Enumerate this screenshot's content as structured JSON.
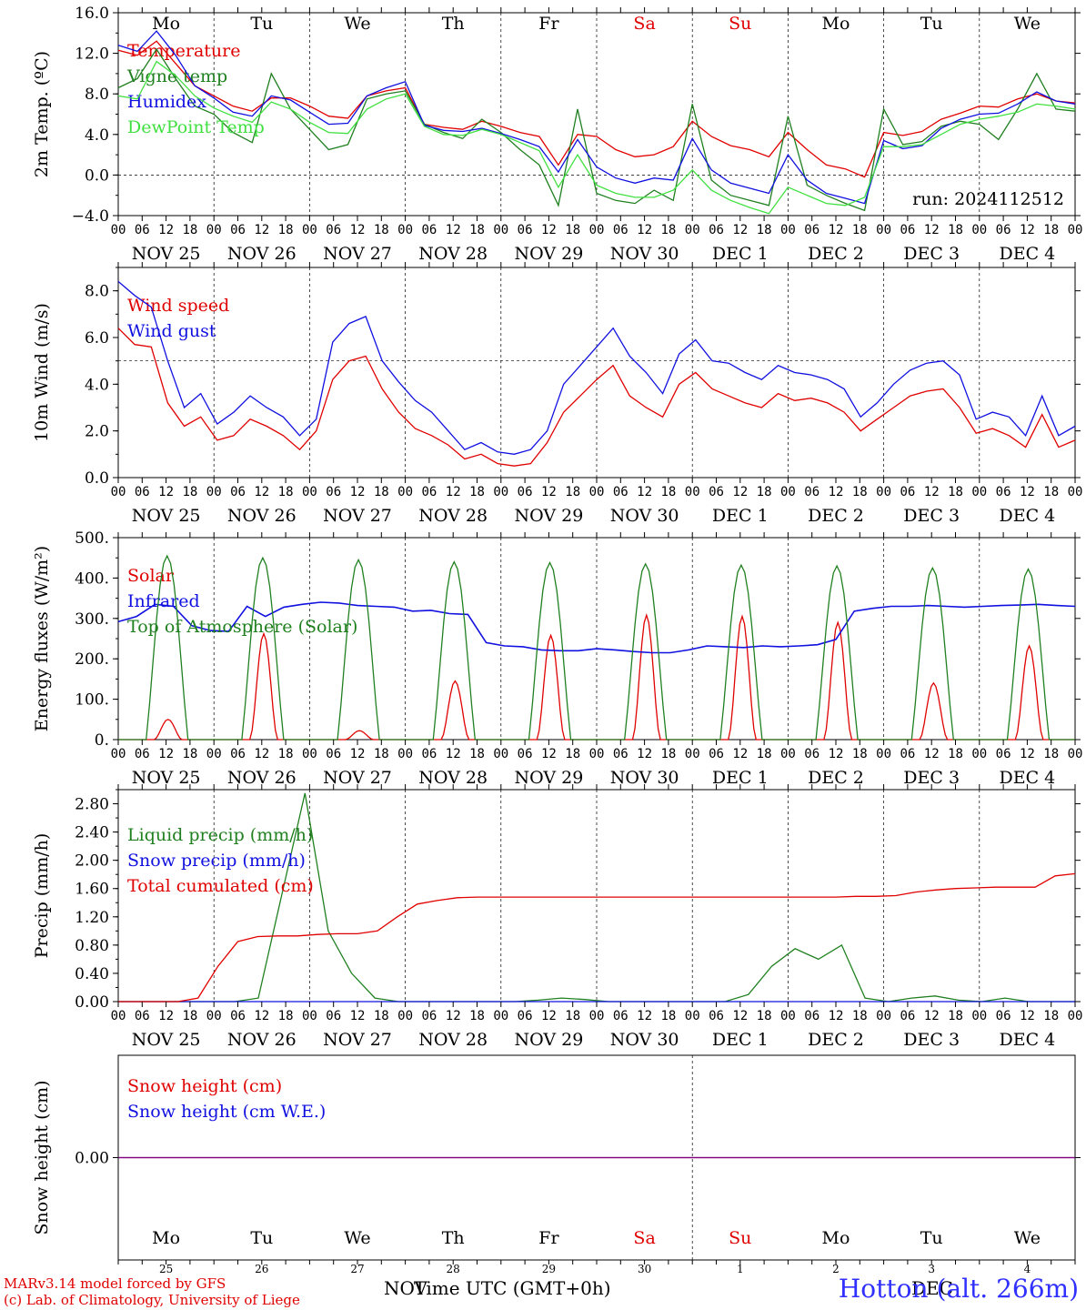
{
  "run_label": "run: 2024112512",
  "credits": [
    "MARv3.14 model forced by GFS",
    "(c) Lab. of Climatology, University of Liege"
  ],
  "station": "Hotton (alt. 266m)",
  "x_axis_title": "Time UTC (GMT+0h)",
  "month_labels": {
    "nov": "NOV",
    "dec": "DEC"
  },
  "hour_ticks": [
    "00",
    "06",
    "12",
    "18"
  ],
  "date_labels": [
    "NOV 25",
    "NOV 26",
    "NOV 27",
    "NOV 28",
    "NOV 29",
    "NOV 30",
    "DEC  1",
    "DEC  2",
    "DEC  3",
    "DEC  4"
  ],
  "weekday_labels": [
    {
      "text": "Mo",
      "color": "#000000"
    },
    {
      "text": "Tu",
      "color": "#000000"
    },
    {
      "text": "We",
      "color": "#000000"
    },
    {
      "text": "Th",
      "color": "#000000"
    },
    {
      "text": "Fr",
      "color": "#000000"
    },
    {
      "text": "Sa",
      "color": "#e00000"
    },
    {
      "text": "Su",
      "color": "#e00000"
    },
    {
      "text": "Mo",
      "color": "#000000"
    },
    {
      "text": "Tu",
      "color": "#000000"
    },
    {
      "text": "We",
      "color": "#000000"
    }
  ],
  "day_numbers": [
    "25",
    "26",
    "27",
    "28",
    "29",
    "30",
    "1",
    "2",
    "3",
    "4"
  ],
  "colors": {
    "red": "#e00000",
    "green": "#208020",
    "blue": "#1010e0",
    "lightgreen": "#40e040",
    "purple": "#800080"
  },
  "chart_data": [
    {
      "type": "line",
      "id": "temperature",
      "ylabel": "2m Temp. (ºC)",
      "ylim": [
        -4,
        16
      ],
      "yticks": [
        "16.0",
        "12.0",
        "8.0",
        "4.0",
        "0.0",
        "−4.0"
      ],
      "ytick_values": [
        16,
        12,
        8,
        4,
        0,
        -4
      ],
      "ref_line": 0,
      "x_hours_step": 6,
      "series": [
        {
          "name": "Temperature",
          "color": "#e00000",
          "values": [
            12.3,
            11.8,
            13.2,
            11.0,
            8.8,
            7.8,
            6.8,
            6.3,
            7.6,
            7.6,
            6.8,
            5.8,
            5.6,
            7.8,
            8.3,
            8.6,
            5.0,
            4.7,
            4.5,
            5.3,
            4.8,
            4.2,
            3.8,
            1.0,
            4.0,
            3.8,
            2.5,
            1.8,
            2.0,
            2.8,
            5.3,
            3.8,
            2.9,
            2.5,
            1.8,
            4.2,
            2.5,
            1.0,
            0.6,
            -0.2,
            4.2,
            3.9,
            4.3,
            5.5,
            6.1,
            6.8,
            6.7,
            7.5,
            8.0,
            7.3,
            7.1
          ]
        },
        {
          "name": "Vigne temp",
          "color": "#208020",
          "values": [
            8.6,
            9.5,
            12.4,
            9.5,
            6.8,
            6.0,
            4.2,
            3.2,
            10.0,
            6.5,
            4.5,
            2.5,
            3.0,
            7.5,
            8.0,
            8.3,
            5.0,
            4.2,
            3.6,
            5.5,
            4.2,
            2.5,
            1.0,
            -3.0,
            6.5,
            -1.8,
            -2.5,
            -2.8,
            -1.5,
            -2.5,
            7.0,
            -0.5,
            -2.0,
            -2.5,
            -3.0,
            5.8,
            -1.0,
            -2.0,
            -2.8,
            -3.5,
            6.5,
            3.0,
            3.3,
            4.8,
            5.3,
            5.0,
            3.5,
            6.5,
            10.0,
            6.5,
            6.3
          ]
        },
        {
          "name": "Humidex",
          "color": "#1010e0",
          "values": [
            12.8,
            12.2,
            14.2,
            11.8,
            8.8,
            7.6,
            6.2,
            5.8,
            7.8,
            7.4,
            6.2,
            5.0,
            5.1,
            7.8,
            8.6,
            9.2,
            4.9,
            4.4,
            4.3,
            4.6,
            4.1,
            3.5,
            2.8,
            0.3,
            3.5,
            0.8,
            -0.3,
            -0.8,
            -0.3,
            -0.5,
            3.6,
            0.5,
            -0.8,
            -1.3,
            -1.8,
            2.0,
            -0.5,
            -1.8,
            -2.3,
            -2.8,
            3.4,
            2.6,
            2.9,
            4.6,
            5.5,
            6.0,
            6.1,
            7.0,
            8.2,
            7.3,
            7.0
          ]
        },
        {
          "name": "DewPoint Temp",
          "color": "#40e040",
          "values": [
            7.8,
            7.5,
            11.2,
            9.8,
            7.8,
            6.6,
            5.8,
            5.2,
            7.2,
            6.5,
            5.2,
            4.2,
            4.1,
            6.5,
            7.5,
            8.0,
            4.8,
            4.0,
            3.9,
            4.5,
            4.0,
            3.2,
            2.4,
            -1.2,
            2.0,
            -1.0,
            -1.8,
            -2.2,
            -2.2,
            -1.5,
            0.5,
            -1.5,
            -2.5,
            -3.2,
            -3.8,
            -1.2,
            -2.0,
            -2.8,
            -3.0,
            -2.2,
            2.8,
            2.8,
            3.0,
            4.0,
            5.0,
            5.5,
            5.8,
            6.2,
            7.0,
            6.8,
            6.5
          ]
        }
      ]
    },
    {
      "type": "line",
      "id": "wind",
      "ylabel": "10m Wind (m/s)",
      "ylim": [
        0,
        9
      ],
      "yticks": [
        "8.0",
        "6.0",
        "4.0",
        "2.0",
        "0.0"
      ],
      "ytick_values": [
        8,
        6,
        4,
        2,
        0
      ],
      "ref_line": 5,
      "x_hours_step": 6,
      "series": [
        {
          "name": "Wind speed",
          "color": "#e00000",
          "values": [
            6.4,
            5.7,
            5.6,
            3.2,
            2.2,
            2.6,
            1.6,
            1.8,
            2.5,
            2.2,
            1.8,
            1.2,
            2.0,
            4.2,
            5.0,
            5.2,
            3.8,
            2.8,
            2.1,
            1.8,
            1.4,
            0.8,
            1.0,
            0.6,
            0.5,
            0.6,
            1.5,
            2.8,
            3.5,
            4.2,
            4.8,
            3.5,
            3.0,
            2.6,
            4.0,
            4.5,
            3.8,
            3.5,
            3.2,
            3.0,
            3.6,
            3.3,
            3.4,
            3.2,
            2.8,
            2.0,
            2.5,
            3.0,
            3.5,
            3.7,
            3.8,
            3.0,
            1.9,
            2.1,
            1.8,
            1.3,
            2.7,
            1.3,
            1.6
          ]
        },
        {
          "name": "Wind gust",
          "color": "#1010e0",
          "values": [
            8.4,
            7.8,
            7.3,
            5.0,
            3.0,
            3.6,
            2.3,
            2.8,
            3.5,
            3.0,
            2.6,
            1.8,
            2.5,
            5.8,
            6.6,
            6.9,
            5.0,
            4.1,
            3.3,
            2.8,
            2.0,
            1.2,
            1.5,
            1.1,
            1.0,
            1.2,
            2.0,
            4.0,
            4.8,
            5.6,
            6.4,
            5.2,
            4.5,
            3.6,
            5.3,
            5.9,
            5.0,
            4.9,
            4.5,
            4.2,
            4.8,
            4.5,
            4.4,
            4.2,
            3.8,
            2.6,
            3.2,
            4.0,
            4.6,
            4.9,
            5.0,
            4.4,
            2.5,
            2.8,
            2.6,
            1.8,
            3.5,
            1.8,
            2.2
          ]
        }
      ]
    },
    {
      "type": "line",
      "id": "energy",
      "ylabel": "Energy fluxes (W/m²)",
      "ylim": [
        0,
        500
      ],
      "yticks": [
        "500.",
        "400.",
        "300.",
        "200.",
        "100.",
        "0."
      ],
      "ytick_values": [
        500,
        400,
        300,
        200,
        100,
        0
      ],
      "ref_line": null,
      "series": [
        {
          "name": "Solar",
          "color": "#e00000",
          "peaks": [
            50,
            262,
            22,
            145,
            258,
            308,
            305,
            290,
            140,
            232
          ]
        },
        {
          "name": "Infrared",
          "color": "#1010e0",
          "values": [
            292,
            305,
            335,
            330,
            282,
            270,
            268,
            330,
            305,
            328,
            335,
            340,
            338,
            332,
            330,
            328,
            318,
            320,
            312,
            310,
            240,
            232,
            230,
            222,
            220,
            220,
            225,
            222,
            218,
            215,
            215,
            222,
            232,
            230,
            228,
            232,
            230,
            232,
            235,
            248,
            318,
            325,
            330,
            330,
            332,
            330,
            328,
            330,
            332,
            333,
            335,
            332,
            330
          ]
        },
        {
          "name": "Top of Atmosphere (Solar)",
          "color": "#208020",
          "peaks": [
            455,
            450,
            445,
            440,
            438,
            435,
            432,
            430,
            425,
            422
          ]
        }
      ]
    },
    {
      "type": "line",
      "id": "precip",
      "ylabel": "Precip (mm/h)",
      "ylim": [
        0,
        3.0
      ],
      "yticks": [
        "2.80",
        "2.40",
        "2.00",
        "1.60",
        "1.20",
        "0.80",
        "0.40",
        "0.00"
      ],
      "ytick_values": [
        2.8,
        2.4,
        2.0,
        1.6,
        1.2,
        0.8,
        0.4,
        0.0
      ],
      "ref_line": null,
      "series": [
        {
          "name": "Liquid precip (mm/h)",
          "color": "#208020",
          "values": [
            0,
            0,
            0,
            0,
            0,
            0,
            0.05,
            1.5,
            2.95,
            1.0,
            0.4,
            0.05,
            0,
            0,
            0,
            0,
            0,
            0,
            0.02,
            0.05,
            0.03,
            0,
            0,
            0,
            0,
            0,
            0,
            0.1,
            0.5,
            0.75,
            0.6,
            0.8,
            0.05,
            0,
            0.05,
            0.08,
            0.02,
            0,
            0.05,
            0,
            0,
            0
          ]
        },
        {
          "name": "Snow precip (mm/h)",
          "color": "#1010e0",
          "values": [
            0,
            0
          ]
        },
        {
          "name": "Total cumulated (cm)",
          "color": "#e00000",
          "values": [
            0,
            0,
            0,
            0,
            0.05,
            0.5,
            0.85,
            0.92,
            0.93,
            0.93,
            0.95,
            0.96,
            0.96,
            1.0,
            1.2,
            1.38,
            1.43,
            1.47,
            1.48,
            1.48,
            1.48,
            1.48,
            1.48,
            1.48,
            1.48,
            1.48,
            1.48,
            1.48,
            1.48,
            1.48,
            1.48,
            1.48,
            1.48,
            1.48,
            1.48,
            1.48,
            1.48,
            1.49,
            1.49,
            1.5,
            1.55,
            1.58,
            1.6,
            1.61,
            1.62,
            1.62,
            1.62,
            1.78,
            1.81
          ]
        }
      ]
    },
    {
      "type": "line",
      "id": "snow",
      "ylabel": "Snow height (cm)",
      "ylim": [
        -1,
        1
      ],
      "yticks": [
        "0.00"
      ],
      "ytick_values": [
        0
      ],
      "ref_line": null,
      "series": [
        {
          "name": "Snow height (cm)",
          "color": "#e00000",
          "values": [
            0,
            0
          ]
        },
        {
          "name": "Snow height (cm W.E.)",
          "color": "#1010e0",
          "values": [
            0,
            0
          ]
        }
      ]
    }
  ]
}
